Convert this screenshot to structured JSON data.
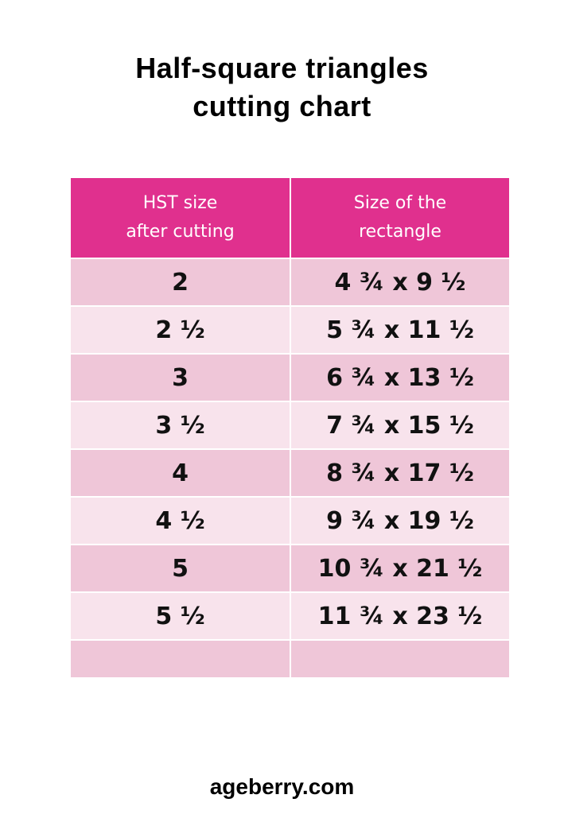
{
  "title": {
    "line1": "Half-square triangles",
    "line2": "cutting chart"
  },
  "colors": {
    "header_bg": "#e0308e",
    "row_dark": "#efc6d8",
    "row_light": "#f8e3ec",
    "header_text": "#ffffff"
  },
  "table": {
    "headers": [
      {
        "line1": "HST size",
        "line2": "after cutting"
      },
      {
        "line1": "Size of the",
        "line2": "rectangle"
      }
    ],
    "rows": [
      {
        "hst": "2",
        "rect": "4 ¾ x 9 ½"
      },
      {
        "hst": "2 ½",
        "rect": "5 ¾ x 11 ½"
      },
      {
        "hst": "3",
        "rect": "6 ¾ x 13 ½"
      },
      {
        "hst": "3 ½",
        "rect": "7 ¾ x 15 ½"
      },
      {
        "hst": "4",
        "rect": "8 ¾ x 17 ½"
      },
      {
        "hst": "4 ½",
        "rect": "9 ¾ x 19 ½"
      },
      {
        "hst": "5",
        "rect": "10 ¾ x 21 ½"
      },
      {
        "hst": "5 ½",
        "rect": "11 ¾ x 23 ½"
      }
    ]
  },
  "footer": {
    "site": "ageberry.com"
  }
}
